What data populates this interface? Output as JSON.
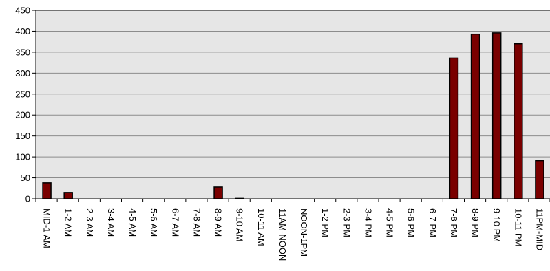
{
  "chart_data": {
    "type": "bar",
    "title": "",
    "xlabel": "",
    "ylabel": "",
    "ylim": [
      0,
      450
    ],
    "yticks": [
      "0",
      "50",
      "100",
      "150",
      "200",
      "250",
      "300",
      "350",
      "400",
      "450"
    ],
    "grid": true,
    "legend": "none",
    "categories": [
      "MID-1 AM",
      "1-2 AM",
      "2-3 AM",
      "3-4 AM",
      "4-5 AM",
      "5-6 AM",
      "6-7 AM",
      "7-8 AM",
      "8-9 AM",
      "9-10 AM",
      "10-11 AM",
      "11AM-NOON",
      "NOON-1PM",
      "1-2 PM",
      "2-3 PM",
      "3-4 PM",
      "4-5 PM",
      "5-6 PM",
      "6-7 PM",
      "7-8 PM",
      "8-9 PM",
      "9-10 PM",
      "10-11 PM",
      "11PM-MID"
    ],
    "values": [
      38,
      15,
      0,
      0,
      0,
      0,
      0,
      0,
      28,
      1,
      0,
      0,
      0,
      0,
      0,
      0,
      0,
      0,
      0,
      336,
      393,
      396,
      370,
      91
    ],
    "colors": {
      "bar": "#7a0000",
      "bar_outline": "#000000",
      "plot_background": "#e6e6e6",
      "gridline": "#8c8c8c",
      "axis": "#000000"
    }
  }
}
